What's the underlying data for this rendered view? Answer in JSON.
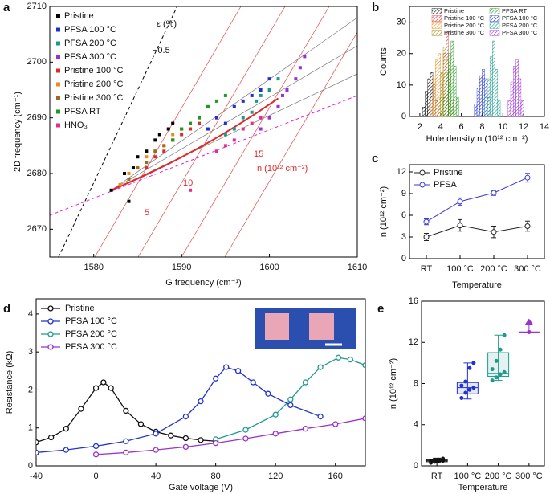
{
  "chart_data": [
    {
      "panel_label": "a",
      "type": "scatter",
      "xlabel": "G frequency (cm⁻¹)",
      "ylabel": "2D frequency (cm⁻¹)",
      "xlim": [
        1575,
        1610
      ],
      "ylim": [
        2665,
        2710
      ],
      "xticks": [
        1580,
        1590,
        1600,
        1610
      ],
      "yticks": [
        2670,
        2680,
        2690,
        2700,
        2710
      ],
      "annotations": [
        "ε (%)",
        "−0.5",
        "5",
        "10",
        "15",
        "n (10¹² cm⁻²)"
      ],
      "series": [
        {
          "name": "Pristine",
          "color": "#000000",
          "x": [
            1582,
            1583.5,
            1584,
            1584.5,
            1585,
            1586,
            1587,
            1587.5,
            1588.5,
            1589
          ],
          "values": [
            2677,
            2680,
            2675,
            2681,
            2683,
            2684,
            2686,
            2687,
            2688,
            2689
          ]
        },
        {
          "name": "PFSA 100 °C",
          "color": "#1f2fd0",
          "x": [
            1593,
            1594,
            1595,
            1596,
            1597,
            1598,
            1599,
            1600
          ],
          "values": [
            2688,
            2690,
            2689,
            2692,
            2693,
            2694,
            2695,
            2697
          ]
        },
        {
          "name": "PFSA 200 °C",
          "color": "#1a9a8a",
          "x": [
            1595,
            1596,
            1597,
            1598,
            1598.5,
            1599,
            1600,
            1601
          ],
          "values": [
            2687,
            2688,
            2690,
            2691,
            2693,
            2694,
            2695,
            2697
          ]
        },
        {
          "name": "PFSA 300 °C",
          "color": "#9b2fd6",
          "x": [
            1599,
            1600,
            1601,
            1601.5,
            1602,
            1603,
            1603.5,
            1604
          ],
          "values": [
            2688,
            2690,
            2692,
            2694,
            2695,
            2697,
            2699,
            2701
          ]
        },
        {
          "name": "Pristine 100 °C",
          "color": "#e02a2a",
          "x": [
            1586,
            1587,
            1588,
            1589,
            1590,
            1591,
            1592
          ],
          "values": [
            2681,
            2683,
            2684,
            2686,
            2687,
            2688,
            2689
          ]
        },
        {
          "name": "Pristine 200 °C",
          "color": "#f08a1c",
          "x": [
            1583,
            1584,
            1585,
            1586,
            1587,
            1588,
            1589,
            1590
          ],
          "values": [
            2678,
            2680,
            2681,
            2683,
            2684,
            2685,
            2687,
            2688
          ]
        },
        {
          "name": "Pristine 300 °C",
          "color": "#9a6a20",
          "x": [
            1584,
            1585,
            1586,
            1587,
            1588,
            1589,
            1590
          ],
          "values": [
            2679,
            2681,
            2682,
            2684,
            2685,
            2686,
            2688
          ]
        },
        {
          "name": "PFSA RT",
          "color": "#1e9a1e",
          "x": [
            1589,
            1590,
            1591,
            1592,
            1593,
            1594,
            1595
          ],
          "values": [
            2686,
            2688,
            2689,
            2690,
            2692,
            2693,
            2694
          ]
        },
        {
          "name": "HNO₃",
          "color": "#e0308a",
          "x": [
            1591,
            1594,
            1595,
            1596,
            1597,
            1598,
            1599
          ],
          "values": [
            2677,
            2684,
            2685,
            2686,
            2688,
            2689,
            2690
          ]
        }
      ]
    },
    {
      "panel_label": "b",
      "type": "histogram",
      "xlabel": "Hole density n (10¹² cm⁻²)",
      "ylabel": "Counts",
      "xlim": [
        1,
        14
      ],
      "ylim": [
        0,
        35
      ],
      "xticks": [
        2,
        4,
        6,
        8,
        10,
        12,
        14
      ],
      "yticks": [
        0,
        10,
        20,
        30
      ],
      "series": [
        {
          "name": "Pristine",
          "color": "#000000",
          "bins": [
            2.25,
            2.5,
            2.75,
            3.0,
            3.25,
            3.5,
            3.75
          ],
          "counts": [
            3,
            8,
            12,
            14,
            10,
            5
          ]
        },
        {
          "name": "Pristine 100 °C",
          "color": "#e02a2a",
          "bins": [
            3.75,
            4.0,
            4.25,
            4.5,
            4.75,
            5.0,
            5.25
          ],
          "counts": [
            4,
            10,
            20,
            27,
            15,
            5
          ]
        },
        {
          "name": "Pristine 200 °C",
          "color": "#f08a1c",
          "bins": [
            3.0,
            3.25,
            3.5,
            3.75,
            4.0,
            4.25,
            4.5
          ],
          "counts": [
            5,
            12,
            18,
            20,
            14,
            6
          ]
        },
        {
          "name": "Pristine 300 °C",
          "color": "#9a8a10",
          "bins": [
            3.75,
            4.0,
            4.25,
            4.5,
            4.75,
            5.0,
            5.25
          ],
          "counts": [
            6,
            14,
            22,
            18,
            10,
            4
          ]
        },
        {
          "name": "PFSA RT",
          "color": "#1e9a1e",
          "bins": [
            4.25,
            4.5,
            4.75,
            5.0,
            5.25,
            5.5,
            5.75
          ],
          "counts": [
            6,
            14,
            20,
            24,
            16,
            6
          ]
        },
        {
          "name": "PFSA 100 °C",
          "color": "#1f2fd0",
          "bins": [
            7.25,
            7.5,
            7.75,
            8.0,
            8.25,
            8.5,
            8.75
          ],
          "counts": [
            4,
            9,
            13,
            15,
            12,
            6
          ]
        },
        {
          "name": "PFSA 200 °C",
          "color": "#1a9a8a",
          "bins": [
            8.25,
            8.5,
            8.75,
            9.0,
            9.25,
            9.5,
            9.75
          ],
          "counts": [
            6,
            12,
            19,
            24,
            15,
            5
          ]
        },
        {
          "name": "PFSA 300 °C",
          "color": "#9b2fd6",
          "bins": [
            10.5,
            10.75,
            11.0,
            11.25,
            11.5,
            11.75,
            12.0
          ],
          "counts": [
            5,
            11,
            16,
            18,
            12,
            5
          ]
        }
      ]
    },
    {
      "panel_label": "c",
      "type": "errorline",
      "xlabel": "Temperature",
      "ylabel": "n (10¹² cm⁻²)",
      "categories": [
        "RT",
        "100 °C",
        "200 °C",
        "300 °C"
      ],
      "ylim": [
        0,
        13
      ],
      "yticks": [
        0,
        3,
        6,
        9,
        12
      ],
      "series": [
        {
          "name": "Pristine",
          "color": "#222222",
          "values": [
            3.0,
            4.6,
            3.7,
            4.5
          ],
          "errors": [
            0.5,
            0.8,
            0.8,
            0.7
          ]
        },
        {
          "name": "PFSA",
          "color": "#3a3ad8",
          "values": [
            5.1,
            7.9,
            9.1,
            11.2
          ],
          "errors": [
            0.4,
            0.5,
            0.35,
            0.6
          ]
        }
      ]
    },
    {
      "panel_label": "d",
      "type": "line",
      "xlabel": "Gate voltage (V)",
      "ylabel": "Resistance (kΩ)",
      "xlim": [
        -40,
        180
      ],
      "ylim": [
        0,
        4.4
      ],
      "xticks": [
        -40,
        0,
        40,
        80,
        120,
        160
      ],
      "yticks": [
        0,
        1,
        2,
        3,
        4
      ],
      "series": [
        {
          "name": "Pristine",
          "color": "#111111",
          "x": [
            -40,
            -30,
            -20,
            -10,
            0,
            5,
            10,
            20,
            30,
            40,
            50,
            60,
            70,
            80
          ],
          "values": [
            0.62,
            0.75,
            0.98,
            1.5,
            2.05,
            2.2,
            2.05,
            1.45,
            1.1,
            0.9,
            0.8,
            0.73,
            0.68,
            0.65
          ]
        },
        {
          "name": "PFSA 100 °C",
          "color": "#2233cc",
          "x": [
            -40,
            -20,
            0,
            20,
            40,
            60,
            70,
            80,
            87,
            95,
            105,
            115,
            130,
            150
          ],
          "values": [
            0.35,
            0.42,
            0.52,
            0.65,
            0.85,
            1.3,
            1.7,
            2.3,
            2.6,
            2.5,
            2.2,
            1.9,
            1.6,
            1.3
          ]
        },
        {
          "name": "PFSA 200 °C",
          "color": "#1f9a8c",
          "x": [
            80,
            100,
            120,
            130,
            140,
            150,
            162,
            170,
            180
          ],
          "values": [
            0.7,
            0.95,
            1.35,
            1.75,
            2.2,
            2.6,
            2.85,
            2.8,
            2.65
          ]
        },
        {
          "name": "PFSA 300 °C",
          "color": "#9933cc",
          "x": [
            0,
            20,
            40,
            60,
            80,
            100,
            120,
            140,
            160,
            180
          ],
          "values": [
            0.3,
            0.35,
            0.42,
            0.5,
            0.6,
            0.72,
            0.85,
            0.98,
            1.1,
            1.25
          ]
        }
      ]
    },
    {
      "panel_label": "e",
      "type": "box",
      "xlabel": "Temperature",
      "ylabel": "n (10¹² cm⁻²)",
      "categories": [
        "RT",
        "100 °C",
        "200 °C",
        "300 °C"
      ],
      "ylim": [
        0,
        16
      ],
      "yticks": [
        0,
        4,
        8,
        12,
        16
      ],
      "boxes": [
        {
          "color": "#111111",
          "min": 0.3,
          "q1": 0.4,
          "median": 0.5,
          "q3": 0.6,
          "max": 0.75,
          "points": [
            0.3,
            0.4,
            0.45,
            0.5,
            0.5,
            0.55,
            0.6,
            0.7
          ]
        },
        {
          "color": "#2233cc",
          "min": 6.5,
          "q1": 7.0,
          "median": 7.6,
          "q3": 8.1,
          "max": 10.0,
          "points": [
            6.6,
            7.1,
            7.4,
            7.6,
            7.8,
            8.2,
            9.5,
            10.0
          ]
        },
        {
          "color": "#1f9a8c",
          "min": 8.3,
          "q1": 8.7,
          "median": 9.0,
          "q3": 11.0,
          "max": 12.7,
          "points": [
            8.3,
            8.6,
            8.9,
            9.1,
            9.4,
            10.2,
            11.3,
            12.7
          ]
        },
        {
          "color": "#9933cc",
          "points": [
            13
          ]
        }
      ]
    }
  ]
}
